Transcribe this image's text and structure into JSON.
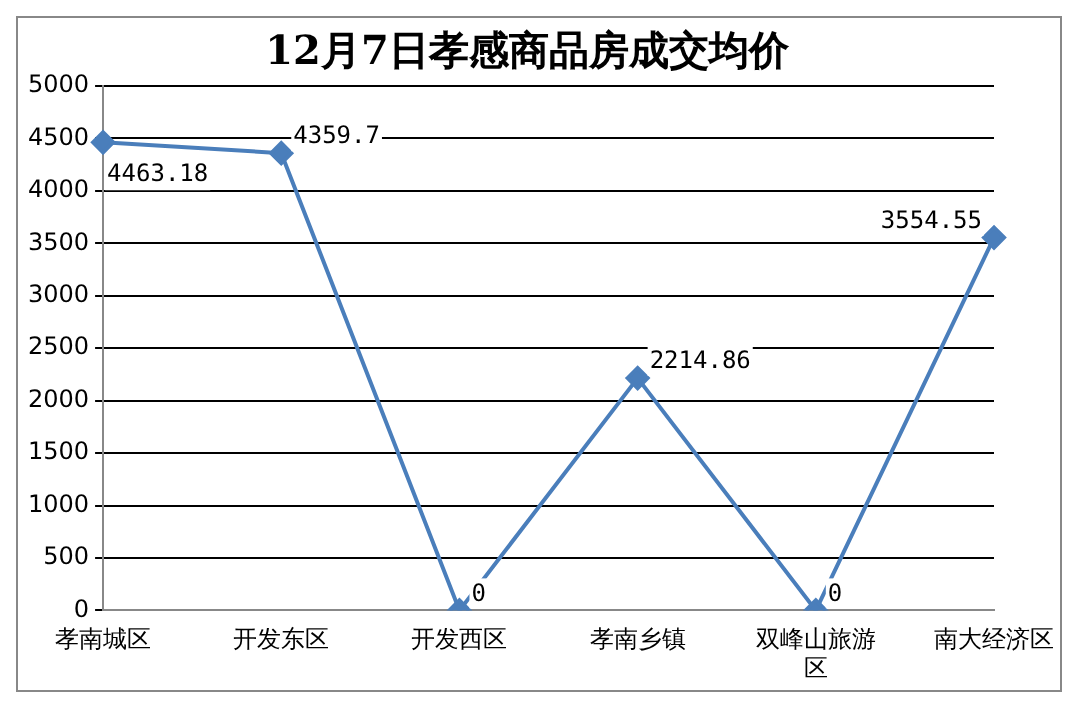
{
  "chart_data": {
    "type": "line",
    "title": "12月7日孝感商品房成交均价",
    "categories": [
      "孝南城区",
      "开发东区",
      "开发西区",
      "孝南乡镇",
      "双峰山旅游区",
      "南大经济区"
    ],
    "series": [
      {
        "color": "#4a7ebb",
        "values": [
          4463.18,
          4359.7,
          0,
          2214.86,
          0,
          3554.55
        ]
      }
    ],
    "ylim": [
      0,
      5000
    ],
    "yticks": [
      0,
      500,
      1000,
      1500,
      2000,
      2500,
      3000,
      3500,
      4000,
      4500,
      5000
    ],
    "grid": "y",
    "legend": false,
    "marker": "diamond",
    "line_style": "solid",
    "data_labels": true
  }
}
